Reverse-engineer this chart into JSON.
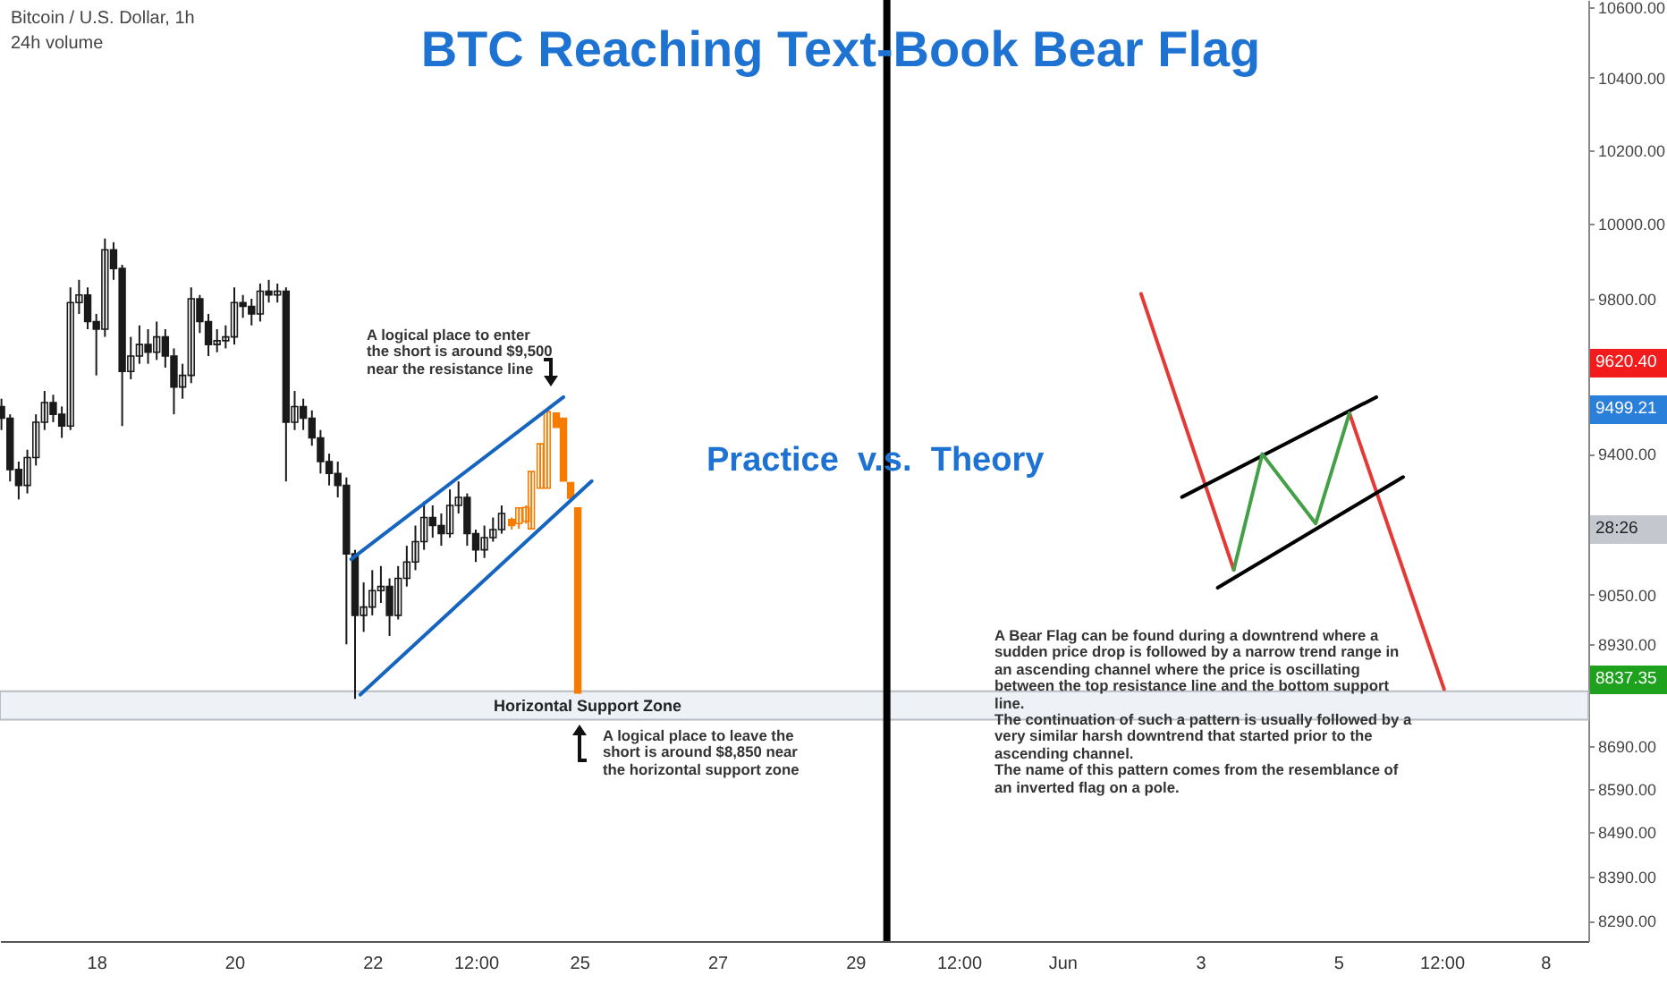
{
  "chart_data": {
    "type": "candlestick",
    "title": "BTC Reaching Text-Book Bear Flag",
    "annotations": [
      "Bitcoin / U.S. Dollar, 1h",
      "24h volume",
      "Practice  v.s.  Theory",
      "A logical place to enter the short is around $9,500 near the resistance line",
      "A logical place to leave the short is around $8,850 near the horizontal support zone",
      "A Bear Flag can be found during a downtrend where a sudden price drop is followed by a narrow trend range in an ascending channel where the price is oscillating between the top resistance line and the bottom support line.\nThe continuation of such a pattern is usually followed by a very similar harsh downtrend that started prior to the ascending channel.\nThe name of this pattern comes from the resemblance of an inverted flag on a pole.",
      "9620.40",
      "9499.21",
      "28:26",
      "8837.35"
    ],
    "log": "y",
    "xlim": [
      "--05-16T14:30",
      "--06-08T15:00"
    ],
    "ylim": [
      8245,
      10620
    ],
    "xticks": [
      {
        "value": "--05-18",
        "label": "18"
      },
      {
        "value": "--05-20",
        "label": "20"
      },
      {
        "value": "--05-22",
        "label": "22"
      },
      {
        "value": "--05-23T12:00",
        "label": "12:00"
      },
      {
        "value": "--05-25",
        "label": "25"
      },
      {
        "value": "--05-27",
        "label": "27"
      },
      {
        "value": "--05-29",
        "label": "29"
      },
      {
        "value": "--05-30T12:00",
        "label": "12:00"
      },
      {
        "value": "--06-01",
        "label": "Jun"
      },
      {
        "value": "--06-03",
        "label": "3"
      },
      {
        "value": "--06-05",
        "label": "5"
      },
      {
        "value": "--06-06T12:00",
        "label": "12:00"
      },
      {
        "value": "--06-08",
        "label": "8"
      }
    ],
    "yticks": [
      {
        "value": 10600,
        "label": "10600.00"
      },
      {
        "value": 10400,
        "label": "10400.00"
      },
      {
        "value": 10200,
        "label": "10200.00"
      },
      {
        "value": 10000,
        "label": "10000.00"
      },
      {
        "value": 9800,
        "label": "9800.00"
      },
      {
        "value": 9400,
        "label": "9400.00"
      },
      {
        "value": 9050,
        "label": "9050.00"
      },
      {
        "value": 8930,
        "label": "8930.00"
      },
      {
        "value": 8690,
        "label": "8690.00"
      },
      {
        "value": 8590,
        "label": "8590.00"
      },
      {
        "value": 8490,
        "label": "8490.00"
      },
      {
        "value": 8390,
        "label": "8390.00"
      },
      {
        "value": 8290,
        "label": "8290.00"
      }
    ],
    "bands": [
      {
        "axis": "y",
        "from": 8751,
        "to": 8818,
        "label": "Horizontal Support Zone",
        "color": "#eef1f5"
      }
    ],
    "ref_lines": [
      {
        "axis": "x",
        "value": "--05-29T11:00",
        "color": "#000000"
      }
    ],
    "series": [
      {
        "color": "#1a1a1a",
        "x": [
          "--05-16T15:00",
          "--05-16T18:00",
          "--05-16T21:00",
          "--05-17T00:00",
          "--05-17T03:00",
          "--05-17T06:00",
          "--05-17T09:00",
          "--05-17T12:00",
          "--05-17T15:00",
          "--05-17T18:00",
          "--05-17T21:00",
          "--05-18T00:00",
          "--05-18T03:00",
          "--05-18T06:00",
          "--05-18T09:00",
          "--05-18T12:00",
          "--05-18T15:00",
          "--05-18T18:00",
          "--05-18T21:00",
          "--05-19T00:00",
          "--05-19T03:00",
          "--05-19T06:00",
          "--05-19T09:00",
          "--05-19T12:00",
          "--05-19T15:00",
          "--05-19T18:00",
          "--05-19T21:00",
          "--05-20T00:00",
          "--05-20T03:00",
          "--05-20T06:00",
          "--05-20T09:00",
          "--05-20T12:00",
          "--05-20T15:00",
          "--05-20T18:00",
          "--05-20T21:00",
          "--05-21T00:00",
          "--05-21T03:00",
          "--05-21T06:00",
          "--05-21T09:00",
          "--05-21T12:00",
          "--05-21T15:00",
          "--05-21T18:00",
          "--05-21T21:00",
          "--05-22T00:00",
          "--05-22T03:00",
          "--05-22T06:00",
          "--05-22T09:00",
          "--05-22T12:00",
          "--05-22T15:00",
          "--05-22T18:00",
          "--05-22T21:00",
          "--05-23T00:00",
          "--05-23T03:00",
          "--05-23T06:00",
          "--05-23T09:00",
          "--05-23T12:00",
          "--05-23T15:00",
          "--05-23T18:00",
          "--05-23T21:00"
        ],
        "ohlc": [
          [
            9520,
            9540,
            9460,
            9490
          ],
          [
            9490,
            9500,
            9330,
            9360
          ],
          [
            9360,
            9380,
            9285,
            9320
          ],
          [
            9320,
            9410,
            9300,
            9390
          ],
          [
            9390,
            9500,
            9370,
            9480
          ],
          [
            9480,
            9560,
            9460,
            9530
          ],
          [
            9530,
            9550,
            9480,
            9500
          ],
          [
            9500,
            9520,
            9440,
            9470
          ],
          [
            9470,
            9830,
            9460,
            9790
          ],
          [
            9790,
            9850,
            9760,
            9810
          ],
          [
            9810,
            9830,
            9720,
            9740
          ],
          [
            9740,
            9760,
            9600,
            9720
          ],
          [
            9720,
            9960,
            9700,
            9930
          ],
          [
            9930,
            9950,
            9850,
            9880
          ],
          [
            9880,
            9890,
            9470,
            9610
          ],
          [
            9610,
            9700,
            9590,
            9650
          ],
          [
            9650,
            9730,
            9630,
            9680
          ],
          [
            9680,
            9720,
            9630,
            9660
          ],
          [
            9660,
            9740,
            9640,
            9700
          ],
          [
            9700,
            9720,
            9620,
            9650
          ],
          [
            9650,
            9670,
            9500,
            9570
          ],
          [
            9570,
            9630,
            9540,
            9600
          ],
          [
            9600,
            9830,
            9580,
            9800
          ],
          [
            9800,
            9810,
            9710,
            9740
          ],
          [
            9740,
            9760,
            9650,
            9680
          ],
          [
            9680,
            9720,
            9660,
            9690
          ],
          [
            9690,
            9730,
            9670,
            9700
          ],
          [
            9700,
            9830,
            9680,
            9790
          ],
          [
            9790,
            9810,
            9750,
            9780
          ],
          [
            9780,
            9800,
            9730,
            9760
          ],
          [
            9760,
            9840,
            9740,
            9820
          ],
          [
            9820,
            9850,
            9790,
            9810
          ],
          [
            9810,
            9840,
            9790,
            9820
          ],
          [
            9820,
            9830,
            9330,
            9480
          ],
          [
            9480,
            9560,
            9460,
            9520
          ],
          [
            9520,
            9540,
            9460,
            9490
          ],
          [
            9490,
            9510,
            9420,
            9440
          ],
          [
            9440,
            9460,
            9350,
            9380
          ],
          [
            9380,
            9400,
            9320,
            9350
          ],
          [
            9350,
            9380,
            9290,
            9320
          ],
          [
            9320,
            9340,
            8930,
            9150
          ],
          [
            9150,
            9160,
            8800,
            9000
          ],
          [
            9000,
            9080,
            8960,
            9020
          ],
          [
            9020,
            9110,
            9000,
            9060
          ],
          [
            9060,
            9120,
            9030,
            9070
          ],
          [
            9070,
            9090,
            8950,
            9000
          ],
          [
            9000,
            9120,
            8990,
            9090
          ],
          [
            9090,
            9170,
            9070,
            9130
          ],
          [
            9130,
            9220,
            9110,
            9180
          ],
          [
            9180,
            9280,
            9160,
            9240
          ],
          [
            9240,
            9270,
            9190,
            9220
          ],
          [
            9220,
            9250,
            9170,
            9200
          ],
          [
            9200,
            9310,
            9190,
            9270
          ],
          [
            9270,
            9330,
            9250,
            9290
          ],
          [
            9290,
            9300,
            9170,
            9200
          ],
          [
            9200,
            9210,
            9130,
            9160
          ],
          [
            9160,
            9220,
            9140,
            9190
          ],
          [
            9190,
            9240,
            9180,
            9210
          ],
          [
            9210,
            9270,
            9200,
            9250
          ]
        ]
      },
      {
        "color": "#f57c00",
        "x": [
          "--05-24T00:30",
          "--05-24T03:00",
          "--05-24T05:30",
          "--05-24T07:20",
          "--05-24T10:25",
          "--05-24T12:50",
          "--05-24T16:00",
          "--05-24T18:30",
          "--05-24T21:00",
          "--05-24T23:30"
        ],
        "ohlc": [
          [
            9235,
            9240,
            9210,
            9220
          ],
          [
            9225,
            9264,
            9212,
            9264
          ],
          [
            9230,
            9270,
            9225,
            9265
          ],
          [
            9212,
            9355,
            9212,
            9355
          ],
          [
            9313,
            9425,
            9313,
            9425
          ],
          [
            9313,
            9507,
            9313,
            9507
          ],
          [
            9503,
            9503,
            9467,
            9467
          ],
          [
            9490,
            9490,
            9331,
            9331
          ],
          [
            9327,
            9327,
            9288,
            9288
          ],
          [
            9264,
            9264,
            8814,
            8814
          ]
        ]
      },
      {
        "type": "line",
        "color": "#1565c0",
        "x": [
          "--05-21T16:40",
          "--05-24T18:30"
        ],
        "values": [
          9137,
          9544
        ]
      },
      {
        "type": "line",
        "color": "#1565c0",
        "x": [
          "--05-21T19:50",
          "--05-25T04:20"
        ],
        "values": [
          8810,
          9331
        ]
      },
      {
        "type": "line",
        "color": "#e53935",
        "x": [
          "--06-02T03:25",
          "--06-03T11:40"
        ],
        "values": [
          9813,
          9111
        ]
      },
      {
        "type": "line",
        "color": "#e53935",
        "x": [
          "--06-05T03:55",
          "--06-06T12:50"
        ],
        "values": [
          9503,
          8823
        ]
      },
      {
        "type": "line",
        "color": "#000000",
        "x": [
          "--06-02T17:40",
          "--06-05T13:15"
        ],
        "values": [
          9291,
          9544
        ]
      },
      {
        "type": "line",
        "color": "#000000",
        "x": [
          "--06-03T06:05",
          "--06-05T22:35"
        ],
        "values": [
          9067,
          9341
        ]
      },
      {
        "type": "line",
        "color": "#43a047",
        "x": [
          "--06-03T11:40",
          "--06-03T21:35",
          "--06-04T16:10",
          "--06-05T03:55"
        ],
        "values": [
          9111,
          9399,
          9225,
          9503
        ]
      }
    ]
  }
}
